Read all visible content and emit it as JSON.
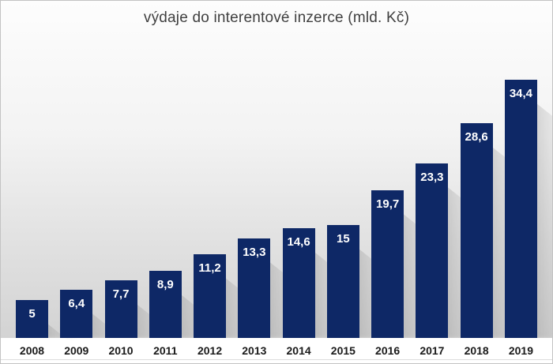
{
  "chart_data": {
    "type": "bar",
    "title": "výdaje do interentové inzerce (mld. Kč)",
    "categories": [
      "2008",
      "2009",
      "2010",
      "2011",
      "2012",
      "2013",
      "2014",
      "2015",
      "2016",
      "2017",
      "2018",
      "2019"
    ],
    "values": [
      5,
      6.4,
      7.7,
      8.9,
      11.2,
      13.3,
      14.6,
      15,
      19.7,
      23.3,
      28.6,
      34.4
    ],
    "value_labels": [
      "5",
      "6,4",
      "7,7",
      "8,9",
      "11,2",
      "13,3",
      "14,6",
      "15",
      "19,7",
      "23,3",
      "28,6",
      "34,4"
    ],
    "xlabel": "",
    "ylabel": "",
    "ylim": [
      0,
      36
    ],
    "grid": false,
    "legend": false,
    "value_labels_position": "inside-top",
    "colors": {
      "bar": "#0e2866",
      "value_label": "#ffffff",
      "title": "#404040",
      "axis_label": "#1a1a1a",
      "background_top": "#fdfdfd",
      "background_bottom": "#d3d3d3"
    }
  }
}
